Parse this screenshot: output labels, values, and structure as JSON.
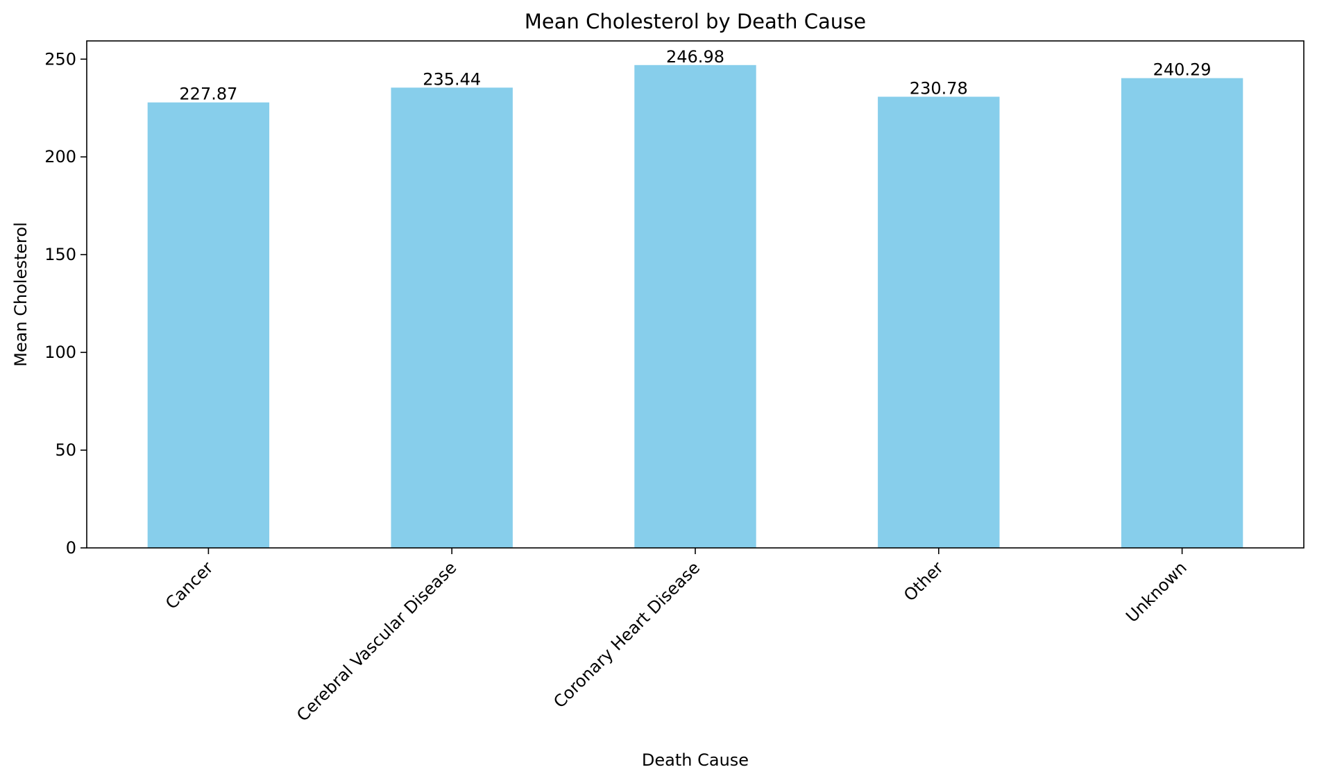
{
  "chart_data": {
    "type": "bar",
    "title": "Mean Cholesterol by Death Cause",
    "xlabel": "Death Cause",
    "ylabel": "Mean Cholesterol",
    "categories": [
      "Cancer",
      "Cerebral Vascular Disease",
      "Coronary Heart Disease",
      "Other",
      "Unknown"
    ],
    "values": [
      227.87,
      235.44,
      246.98,
      230.78,
      240.29
    ],
    "data_labels": [
      "227.87",
      "235.44",
      "246.98",
      "230.78",
      "240.29"
    ],
    "ylim": [
      0,
      259.33
    ],
    "yticks": [
      0,
      50,
      100,
      150,
      200,
      250
    ],
    "grid": false,
    "legend": "none",
    "bar_color": "#87CEEB",
    "tick_rotation_deg": 45
  }
}
